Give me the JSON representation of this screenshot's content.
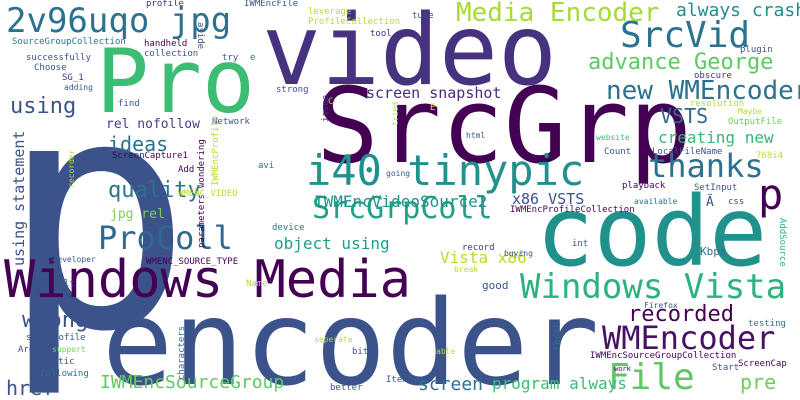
{
  "words": [
    {
      "text": "p",
      "color": "#3b528b"
    },
    {
      "text": "encoder",
      "color": "#3b528b"
    },
    {
      "text": "code",
      "color": "#21918c"
    },
    {
      "text": "video",
      "color": "#46327e"
    },
    {
      "text": "SrcGrp",
      "color": "#440154"
    },
    {
      "text": "Pro",
      "color": "#3dbc74"
    },
    {
      "text": "Windows Media",
      "color": "#440154"
    },
    {
      "text": "i40 tinypic",
      "color": "#21918c"
    },
    {
      "text": "2v96uqo jpg",
      "color": "#2c728e"
    },
    {
      "text": "Windows Vista",
      "color": "#2db27d"
    },
    {
      "text": "Media Encoder",
      "color": "#a5db36"
    },
    {
      "text": "SrcVid",
      "color": "#2c728e"
    },
    {
      "text": "thanks",
      "color": "#2c728e"
    },
    {
      "text": "SrcGrpColl",
      "color": "#1fa088"
    },
    {
      "text": "ProColl",
      "color": "#31688e"
    },
    {
      "text": "WMEncoder",
      "color": "#471164"
    },
    {
      "text": "File",
      "color": "#5ec962"
    },
    {
      "text": "new WMEncoder",
      "color": "#2c728e"
    },
    {
      "text": "advance George",
      "color": "#5ec962"
    },
    {
      "text": "always crash",
      "color": "#228c8d"
    },
    {
      "text": "p",
      "color": "#440154"
    },
    {
      "text": "quality",
      "color": "#2c728e"
    },
    {
      "text": "ideas",
      "color": "#2c728e"
    },
    {
      "text": "recorded",
      "color": "#440154"
    },
    {
      "text": "using",
      "color": "#3b528b"
    },
    {
      "text": "VSTS",
      "color": "#31688e"
    },
    {
      "text": "creating new",
      "color": "#35b779"
    },
    {
      "text": "wrong",
      "color": "#3b528b"
    },
    {
      "text": "IWMEncSourceGroup",
      "color": "#5ec962"
    },
    {
      "text": "IWMEncVideoSource2",
      "color": "#21918c"
    },
    {
      "text": "screen snapshot",
      "color": "#472d7b"
    },
    {
      "text": "object using",
      "color": "#1f9e89"
    },
    {
      "text": "x86 VSTS",
      "color": "#3b528b"
    },
    {
      "text": "Vista x86",
      "color": "#b5de2b"
    },
    {
      "text": "screen",
      "color": "#2c728e"
    },
    {
      "text": "program always",
      "color": "#3dbc74"
    },
    {
      "text": "href",
      "color": "#3b528b"
    },
    {
      "text": "pre",
      "color": "#6ece58"
    },
    {
      "text": "jpg rel",
      "color": "#7ad151"
    },
    {
      "text": "rel nofollow",
      "color": "#414487"
    },
    {
      "text": "using statement",
      "color": "#3b528b"
    },
    {
      "text": "profile",
      "color": "#472d7b"
    },
    {
      "text": "IWMEncFile",
      "color": "#3b528b"
    },
    {
      "text": "tune",
      "color": "#3b528b"
    },
    {
      "text": "ProfileCollection",
      "color": "#b5de2b"
    },
    {
      "text": "leverage",
      "color": "#b5de2b"
    },
    {
      "text": "SourceGroupCollection",
      "color": "#2c728e"
    },
    {
      "text": "handheld",
      "color": "#440154"
    },
    {
      "text": "collection",
      "color": "#3b528b"
    },
    {
      "text": "aside",
      "color": "#3b528b"
    },
    {
      "text": "try",
      "color": "#3b528b"
    },
    {
      "text": "e",
      "color": "#2c728e"
    },
    {
      "text": "tool",
      "color": "#46327e"
    },
    {
      "text": "plugin",
      "color": "#3b528b"
    },
    {
      "text": "Choose",
      "color": "#3b528b"
    },
    {
      "text": "successfully",
      "color": "#3b528b"
    },
    {
      "text": "SG_1",
      "color": "#46327e"
    },
    {
      "text": "adding",
      "color": "#3b528b"
    },
    {
      "text": "obscure",
      "color": "#46327e"
    },
    {
      "text": "resolution",
      "color": "#b5de2b"
    },
    {
      "text": "strong",
      "color": "#3b528b"
    },
    {
      "text": "Maybe",
      "color": "#b5de2b"
    },
    {
      "text": "OutputFile",
      "color": "#6ece58"
    },
    {
      "text": "find",
      "color": "#3b528b"
    },
    {
      "text": "C",
      "color": "#b5de2b"
    },
    {
      "text": "E",
      "color": "#e0e317"
    },
    {
      "text": "Network",
      "color": "#3b528b"
    },
    {
      "text": "ScreenCapture1",
      "color": "#440154"
    },
    {
      "text": "Add",
      "color": "#440154"
    },
    {
      "text": "html",
      "color": "#3b528b"
    },
    {
      "text": "website",
      "color": "#3dbc74"
    },
    {
      "text": "Count",
      "color": "#3b528b"
    },
    {
      "text": "LocalFileName",
      "color": "#3b528b"
    },
    {
      "text": "768i4",
      "color": "#b5de2b"
    },
    {
      "text": "avi",
      "color": "#2c728e"
    },
    {
      "text": "going",
      "color": "#3b528b"
    },
    {
      "text": "playback",
      "color": "#440154"
    },
    {
      "text": "SetInput",
      "color": "#3b528b"
    },
    {
      "text": "available",
      "color": "#2c728e"
    },
    {
      "text": "Ã",
      "color": "#3b528b"
    },
    {
      "text": "css",
      "color": "#3b528b"
    },
    {
      "text": "IWMEncProfileCollection",
      "color": "#440154"
    },
    {
      "text": "int",
      "color": "#3b528b"
    },
    {
      "text": "AddSource",
      "color": "#2db27d"
    },
    {
      "text": "device",
      "color": "#2c728e"
    },
    {
      "text": "record",
      "color": "#46327e"
    },
    {
      "text": "buying",
      "color": "#3b528b"
    },
    {
      "text": "Kbps",
      "color": "#2c728e"
    },
    {
      "text": "WMENC_SOURCE_TYPE",
      "color": "#440154"
    },
    {
      "text": "webdeveloper",
      "color": "#3b528b"
    },
    {
      "text": "break",
      "color": "#b5de2b"
    },
    {
      "text": "lt",
      "color": "#3b528b"
    },
    {
      "text": "Name",
      "color": "#b5de2b"
    },
    {
      "text": "good",
      "color": "#3b528b"
    },
    {
      "text": "Firefox",
      "color": "#3b528b"
    },
    {
      "text": "testing",
      "color": "#2c728e"
    },
    {
      "text": "set_Profile",
      "color": "#3b528b"
    },
    {
      "text": "Area",
      "color": "#3b528b"
    },
    {
      "text": "support",
      "color": "#6ece58"
    },
    {
      "text": "static",
      "color": "#3b528b"
    },
    {
      "text": "seperate",
      "color": "#b5de2b"
    },
    {
      "text": "able",
      "color": "#b5de2b"
    },
    {
      "text": "following",
      "color": "#2c728e"
    },
    {
      "text": "bit",
      "color": "#3b528b"
    },
    {
      "text": "IWMEncSourceGroupCollection",
      "color": "#440154"
    },
    {
      "text": "ScreenCap",
      "color": "#440154"
    },
    {
      "text": "work",
      "color": "#440154"
    },
    {
      "text": "Start",
      "color": "#3b528b"
    },
    {
      "text": "better",
      "color": "#3b528b"
    },
    {
      "text": "Item",
      "color": "#3b528b"
    },
    {
      "text": "tried",
      "color": "#b5de2b"
    },
    {
      "text": "issue",
      "color": "#46327e"
    },
    {
      "text": "wondering",
      "color": "#440154"
    },
    {
      "text": "parameters",
      "color": "#440154"
    },
    {
      "text": "IWMEncProfile",
      "color": "#b5de2b"
    },
    {
      "text": "WMENC_VIDEO",
      "color": "#b5de2b"
    },
    {
      "text": "recorder",
      "color": "#b5de2b"
    },
    {
      "text": "characters",
      "color": "#2c728e"
    },
    {
      "text": "Local",
      "color": "#2c728e"
    }
  ]
}
